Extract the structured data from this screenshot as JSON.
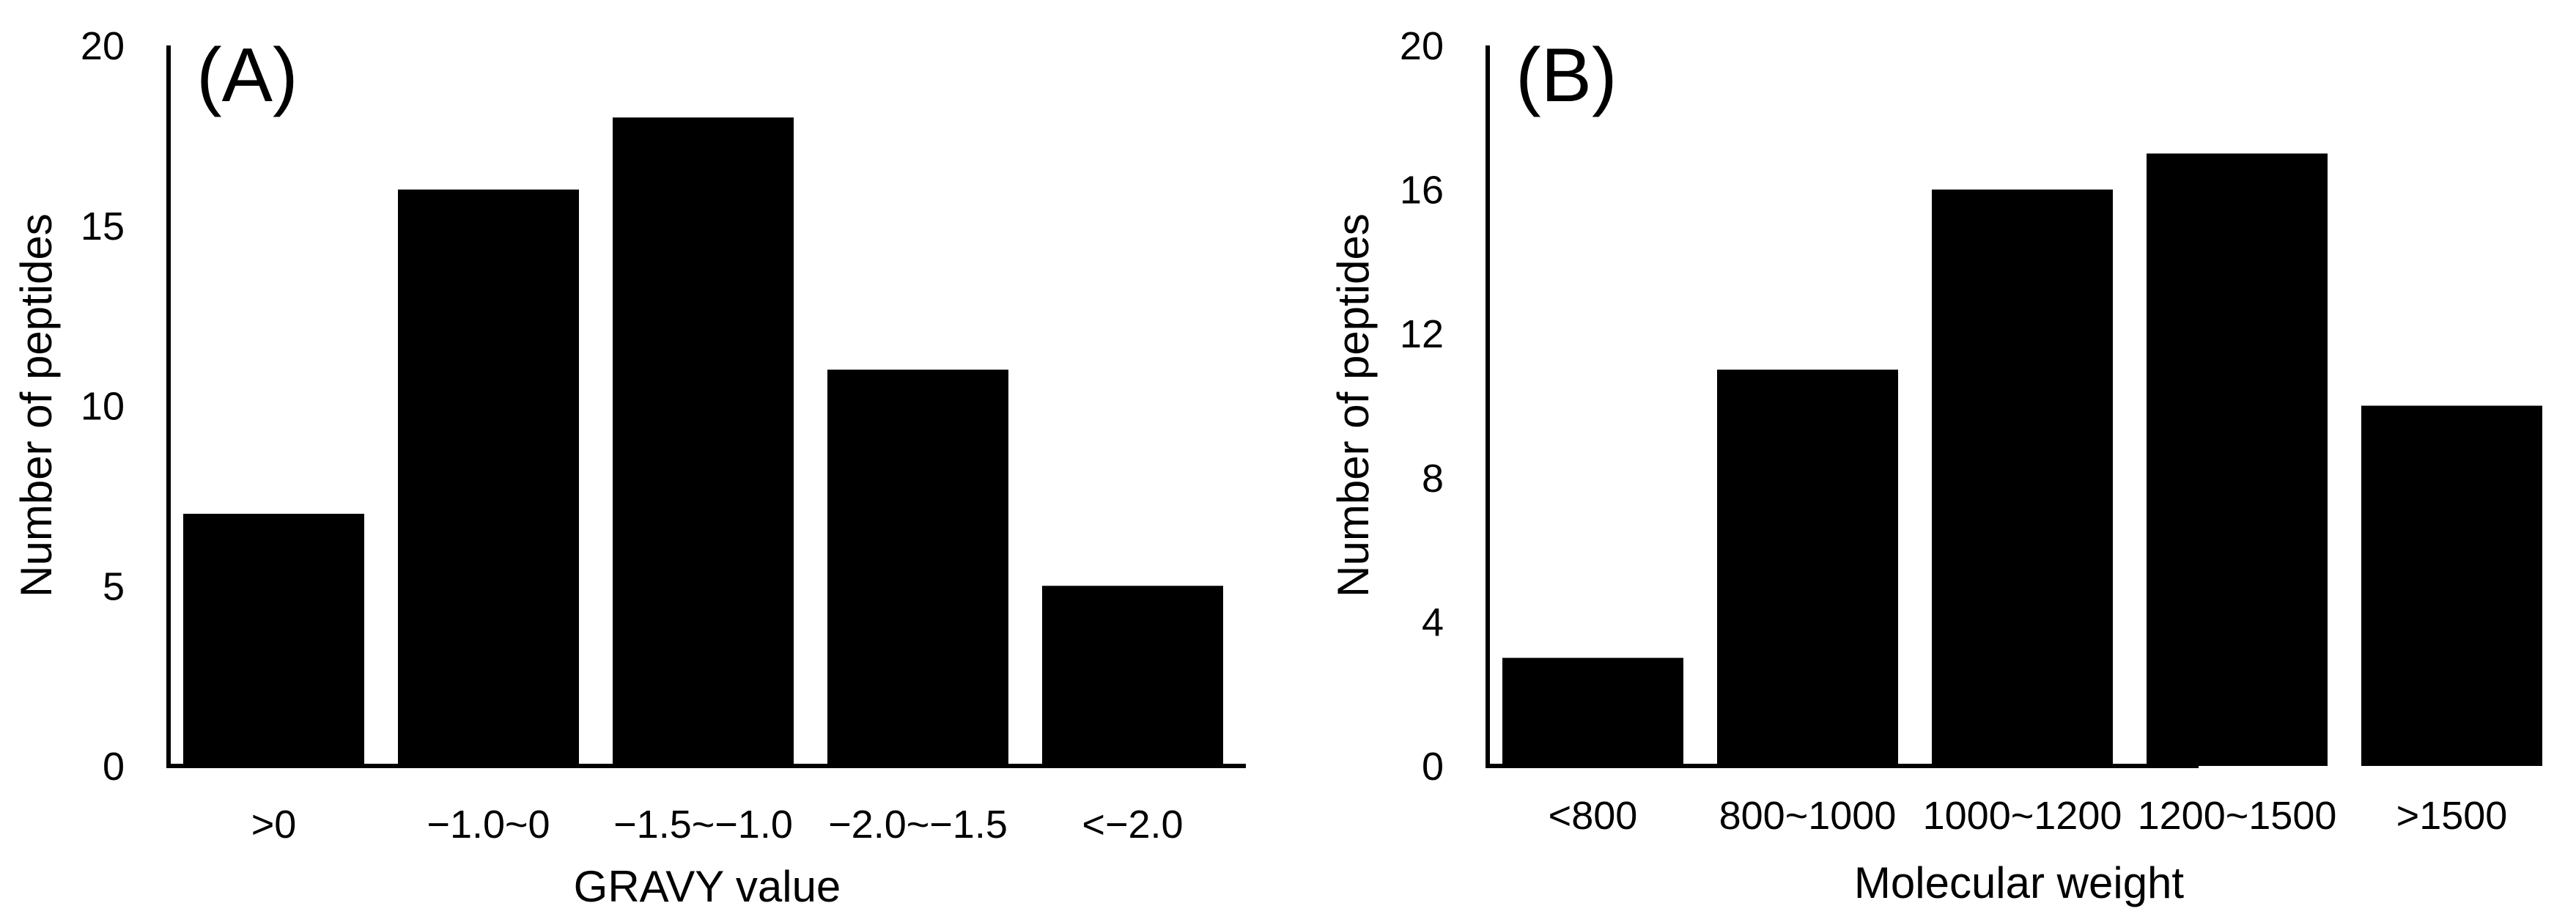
{
  "colors": {
    "bar": "#000000",
    "axis": "#000000",
    "background": "#ffffff"
  },
  "chart_data": [
    {
      "type": "bar",
      "panel_label": "(A)",
      "xlabel": "GRAVY value",
      "ylabel": "Number of peptides",
      "categories": [
        ">0",
        "−1.0~0",
        "−1.5~−1.0",
        "−2.0~−1.5",
        "<−2.0"
      ],
      "values": [
        7,
        16,
        18,
        11,
        5
      ],
      "ylim": [
        0,
        20
      ],
      "yticks": [
        0,
        5,
        10,
        15,
        20
      ],
      "grid": false,
      "legend": "none"
    },
    {
      "type": "bar",
      "panel_label": "(B)",
      "xlabel": "Molecular weight",
      "ylabel": "Number of peptides",
      "categories": [
        "<800",
        "800~1000",
        "1000~1200",
        "1200~1500",
        ">1500"
      ],
      "values": [
        3,
        11,
        16,
        17,
        10
      ],
      "ylim": [
        0,
        20
      ],
      "yticks": [
        0,
        4,
        8,
        12,
        16,
        20
      ],
      "grid": false,
      "legend": "none"
    }
  ]
}
